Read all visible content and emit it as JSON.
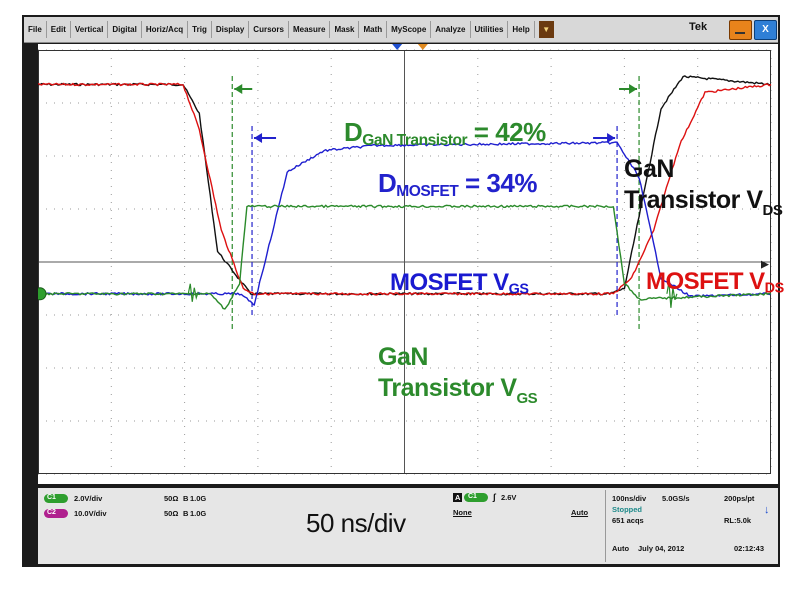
{
  "menu": {
    "items": [
      "File",
      "Edit",
      "Vertical",
      "Digital",
      "Horiz/Acq",
      "Trig",
      "Display",
      "Cursors",
      "Measure",
      "Mask",
      "Math",
      "MyScope",
      "Analyze",
      "Utilities",
      "Help"
    ],
    "logo": "Tek",
    "close_label": "X"
  },
  "annotations": {
    "d_gan_main": "D",
    "d_gan_sub": "GaN Transistor",
    "d_gan_value": " = 42%",
    "d_mos_main": "D",
    "d_mos_sub": "MOSFET",
    "d_mos_value": " = 34%",
    "mosfet_vgs_main": "MOSFET V",
    "mosfet_vgs_sub": "GS",
    "mosfet_vds_main": "MOSFET V",
    "mosfet_vds_sub": "DS",
    "gan_vds_line1": "GaN",
    "gan_vds_line2": "Transistor V",
    "gan_vds_sub": "DS",
    "gan_vgs_line1": "GaN",
    "gan_vgs_line2": "Transistor V",
    "gan_vgs_sub": "GS"
  },
  "channels": [
    {
      "id": "C1",
      "scale": "2.0V/div",
      "impedance": "50Ω",
      "bw": "1.0G",
      "color": "#2e9e2e"
    },
    {
      "id": "C2",
      "scale": "10.0V/div",
      "impedance": "50Ω",
      "bw": "1.0G",
      "color": "#b0208f"
    }
  ],
  "trigger": {
    "label": "A",
    "source": "C1",
    "level": "2.6V",
    "mode_left": "None",
    "mode_right": "Auto"
  },
  "timebase": {
    "big_label": "50 ns/div",
    "scale": "100ns/div",
    "sample_rate": "5.0GS/s",
    "resolution": "200ps/pt",
    "record_length": "RL:5.0k",
    "acqs": "651 acqs",
    "status": "Stopped",
    "mode": "Auto",
    "date": "July 04, 2012",
    "time": "02:12:43"
  },
  "chart_data": {
    "type": "line",
    "x_label": "time",
    "x_divisions": 10,
    "y_divisions": 8,
    "grid": true,
    "series": [
      {
        "name": "GaN Transistor VDS",
        "color": "#111111",
        "x": [
          0,
          1.98,
          2.2,
          2.45,
          2.9,
          7.8,
          8.0,
          8.25,
          8.5,
          8.8,
          10
        ],
        "y": [
          7.35,
          7.35,
          6.8,
          4.2,
          3.4,
          3.4,
          3.5,
          5.2,
          6.9,
          7.5,
          7.35
        ]
      },
      {
        "name": "MOSFET VDS",
        "color": "#dd1111",
        "x": [
          0,
          1.98,
          2.2,
          2.5,
          2.8,
          2.95,
          7.85,
          8.1,
          8.4,
          8.75,
          9.1,
          10
        ],
        "y": [
          7.35,
          7.35,
          6.5,
          4.6,
          3.5,
          3.4,
          3.4,
          3.7,
          4.6,
          6.2,
          7.2,
          7.35
        ]
      },
      {
        "name": "MOSFET VGS",
        "color": "#1f1fcf",
        "x": [
          0,
          2.75,
          2.95,
          3.15,
          3.4,
          3.9,
          4.6,
          7.9,
          8.2,
          8.5,
          8.9,
          10
        ],
        "y": [
          3.4,
          3.4,
          3.2,
          4.3,
          5.7,
          6.1,
          6.2,
          6.25,
          5.6,
          3.7,
          3.35,
          3.4
        ]
      },
      {
        "name": "GaN Transistor VGS",
        "color": "#2a8a2a",
        "x": [
          0,
          2.35,
          2.55,
          2.75,
          2.85,
          7.85,
          8.0,
          8.2,
          10
        ],
        "y": [
          3.4,
          3.4,
          3.1,
          3.6,
          5.05,
          5.05,
          3.6,
          3.3,
          3.4
        ]
      }
    ],
    "markers": {
      "gan_window": {
        "start": 2.65,
        "end": 8.2,
        "label": "42%"
      },
      "mosfet_window": {
        "start": 2.92,
        "end": 7.9,
        "label": "34%"
      }
    }
  }
}
